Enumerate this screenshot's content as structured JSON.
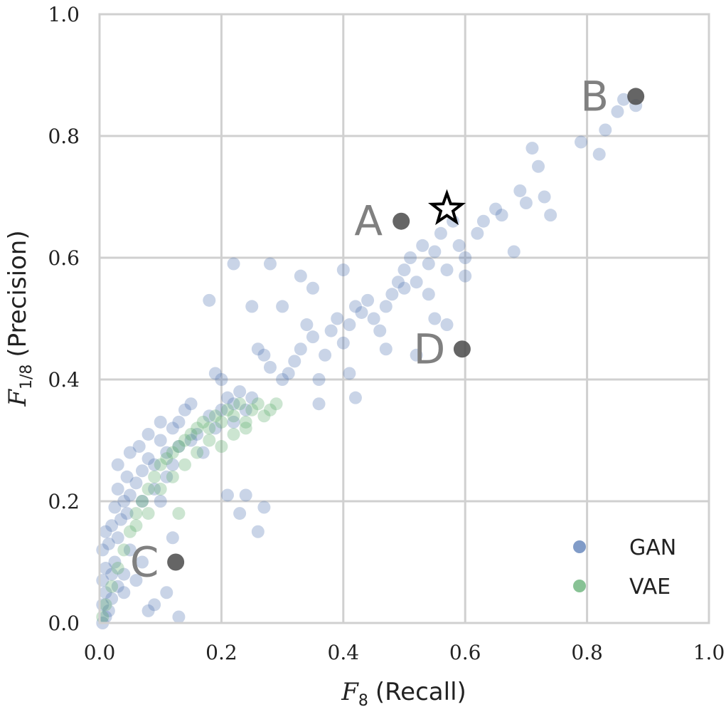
{
  "chart_data": {
    "type": "scatter",
    "title": "",
    "xlabel": {
      "symbol": "F",
      "subscript": "8",
      "text": "(Recall)"
    },
    "ylabel": {
      "symbol": "F",
      "subscript": "1/8",
      "text": "(Precision)"
    },
    "xlim": [
      0.0,
      1.0
    ],
    "ylim": [
      0.0,
      1.0
    ],
    "xticks": [
      "0.0",
      "0.2",
      "0.4",
      "0.6",
      "0.8",
      "1.0"
    ],
    "yticks": [
      "0.0",
      "0.2",
      "0.4",
      "0.6",
      "0.8",
      "1.0"
    ],
    "grid": true,
    "legend_placement": "bottom-right",
    "series": [
      {
        "name": "GAN",
        "color": "#4C72B0",
        "points": [
          [
            0.005,
            0.0
          ],
          [
            0.01,
            0.01
          ],
          [
            0.015,
            0.02
          ],
          [
            0.005,
            0.03
          ],
          [
            0.02,
            0.04
          ],
          [
            0.01,
            0.05
          ],
          [
            0.03,
            0.06
          ],
          [
            0.005,
            0.07
          ],
          [
            0.02,
            0.08
          ],
          [
            0.01,
            0.09
          ],
          [
            0.025,
            0.1
          ],
          [
            0.04,
            0.05
          ],
          [
            0.005,
            0.12
          ],
          [
            0.015,
            0.13
          ],
          [
            0.03,
            0.14
          ],
          [
            0.01,
            0.15
          ],
          [
            0.02,
            0.16
          ],
          [
            0.035,
            0.17
          ],
          [
            0.045,
            0.18
          ],
          [
            0.025,
            0.19
          ],
          [
            0.04,
            0.2
          ],
          [
            0.05,
            0.21
          ],
          [
            0.03,
            0.22
          ],
          [
            0.06,
            0.23
          ],
          [
            0.045,
            0.24
          ],
          [
            0.07,
            0.25
          ],
          [
            0.03,
            0.26
          ],
          [
            0.05,
            0.28
          ],
          [
            0.065,
            0.29
          ],
          [
            0.08,
            0.27
          ],
          [
            0.09,
            0.26
          ],
          [
            0.1,
            0.3
          ],
          [
            0.11,
            0.28
          ],
          [
            0.12,
            0.32
          ],
          [
            0.08,
            0.31
          ],
          [
            0.13,
            0.33
          ],
          [
            0.14,
            0.35
          ],
          [
            0.1,
            0.33
          ],
          [
            0.07,
            0.2
          ],
          [
            0.09,
            0.22
          ],
          [
            0.11,
            0.24
          ],
          [
            0.12,
            0.26
          ],
          [
            0.1,
            0.2
          ],
          [
            0.13,
            0.29
          ],
          [
            0.15,
            0.3
          ],
          [
            0.16,
            0.31
          ],
          [
            0.17,
            0.28
          ],
          [
            0.15,
            0.36
          ],
          [
            0.18,
            0.34
          ],
          [
            0.19,
            0.32
          ],
          [
            0.2,
            0.35
          ],
          [
            0.21,
            0.37
          ],
          [
            0.22,
            0.36
          ],
          [
            0.2,
            0.4
          ],
          [
            0.23,
            0.38
          ],
          [
            0.19,
            0.41
          ],
          [
            0.22,
            0.33
          ],
          [
            0.25,
            0.37
          ],
          [
            0.24,
            0.35
          ],
          [
            0.26,
            0.45
          ],
          [
            0.27,
            0.44
          ],
          [
            0.28,
            0.42
          ],
          [
            0.3,
            0.4
          ],
          [
            0.31,
            0.41
          ],
          [
            0.32,
            0.43
          ],
          [
            0.33,
            0.45
          ],
          [
            0.34,
            0.49
          ],
          [
            0.35,
            0.47
          ],
          [
            0.36,
            0.4
          ],
          [
            0.37,
            0.44
          ],
          [
            0.38,
            0.48
          ],
          [
            0.39,
            0.5
          ],
          [
            0.4,
            0.46
          ],
          [
            0.41,
            0.49
          ],
          [
            0.42,
            0.52
          ],
          [
            0.43,
            0.51
          ],
          [
            0.44,
            0.53
          ],
          [
            0.45,
            0.5
          ],
          [
            0.46,
            0.48
          ],
          [
            0.47,
            0.52
          ],
          [
            0.48,
            0.54
          ],
          [
            0.49,
            0.56
          ],
          [
            0.5,
            0.58
          ],
          [
            0.51,
            0.6
          ],
          [
            0.52,
            0.56
          ],
          [
            0.53,
            0.62
          ],
          [
            0.54,
            0.59
          ],
          [
            0.55,
            0.61
          ],
          [
            0.56,
            0.64
          ],
          [
            0.57,
            0.58
          ],
          [
            0.58,
            0.66
          ],
          [
            0.59,
            0.62
          ],
          [
            0.6,
            0.6
          ],
          [
            0.62,
            0.64
          ],
          [
            0.63,
            0.66
          ],
          [
            0.65,
            0.68
          ],
          [
            0.66,
            0.67
          ],
          [
            0.68,
            0.61
          ],
          [
            0.69,
            0.71
          ],
          [
            0.7,
            0.69
          ],
          [
            0.71,
            0.78
          ],
          [
            0.72,
            0.75
          ],
          [
            0.73,
            0.7
          ],
          [
            0.74,
            0.67
          ],
          [
            0.79,
            0.79
          ],
          [
            0.82,
            0.77
          ],
          [
            0.83,
            0.81
          ],
          [
            0.85,
            0.84
          ],
          [
            0.86,
            0.86
          ],
          [
            0.88,
            0.85
          ],
          [
            0.18,
            0.53
          ],
          [
            0.28,
            0.59
          ],
          [
            0.3,
            0.52
          ],
          [
            0.33,
            0.57
          ],
          [
            0.4,
            0.58
          ],
          [
            0.22,
            0.59
          ],
          [
            0.25,
            0.52
          ],
          [
            0.42,
            0.37
          ],
          [
            0.41,
            0.41
          ],
          [
            0.36,
            0.36
          ],
          [
            0.21,
            0.21
          ],
          [
            0.24,
            0.21
          ],
          [
            0.27,
            0.19
          ],
          [
            0.26,
            0.15
          ],
          [
            0.23,
            0.18
          ],
          [
            0.12,
            0.14
          ],
          [
            0.11,
            0.05
          ],
          [
            0.08,
            0.02
          ],
          [
            0.13,
            0.01
          ],
          [
            0.09,
            0.03
          ],
          [
            0.06,
            0.07
          ],
          [
            0.05,
            0.12
          ],
          [
            0.07,
            0.1
          ],
          [
            0.04,
            0.08
          ],
          [
            0.35,
            0.55
          ],
          [
            0.47,
            0.45
          ],
          [
            0.52,
            0.44
          ],
          [
            0.55,
            0.5
          ],
          [
            0.57,
            0.49
          ],
          [
            0.5,
            0.55
          ],
          [
            0.54,
            0.54
          ],
          [
            0.6,
            0.57
          ]
        ]
      },
      {
        "name": "VAE",
        "color": "#55A868",
        "points": [
          [
            0.005,
            0.01
          ],
          [
            0.01,
            0.03
          ],
          [
            0.02,
            0.06
          ],
          [
            0.03,
            0.09
          ],
          [
            0.04,
            0.12
          ],
          [
            0.05,
            0.15
          ],
          [
            0.06,
            0.18
          ],
          [
            0.07,
            0.2
          ],
          [
            0.08,
            0.22
          ],
          [
            0.09,
            0.24
          ],
          [
            0.1,
            0.26
          ],
          [
            0.11,
            0.27
          ],
          [
            0.12,
            0.28
          ],
          [
            0.13,
            0.29
          ],
          [
            0.14,
            0.3
          ],
          [
            0.15,
            0.31
          ],
          [
            0.16,
            0.32
          ],
          [
            0.17,
            0.33
          ],
          [
            0.18,
            0.32
          ],
          [
            0.19,
            0.34
          ],
          [
            0.2,
            0.33
          ],
          [
            0.21,
            0.35
          ],
          [
            0.22,
            0.34
          ],
          [
            0.23,
            0.36
          ],
          [
            0.24,
            0.33
          ],
          [
            0.25,
            0.35
          ],
          [
            0.26,
            0.36
          ],
          [
            0.27,
            0.34
          ],
          [
            0.28,
            0.35
          ],
          [
            0.29,
            0.36
          ],
          [
            0.2,
            0.29
          ],
          [
            0.18,
            0.3
          ],
          [
            0.16,
            0.28
          ],
          [
            0.22,
            0.31
          ],
          [
            0.24,
            0.32
          ],
          [
            0.14,
            0.26
          ],
          [
            0.12,
            0.24
          ],
          [
            0.1,
            0.22
          ],
          [
            0.13,
            0.18
          ],
          [
            0.08,
            0.18
          ],
          [
            0.06,
            0.16
          ]
        ]
      }
    ],
    "highlights": [
      {
        "label": "A",
        "x": 0.495,
        "y": 0.66
      },
      {
        "label": "B",
        "x": 0.88,
        "y": 0.865
      },
      {
        "label": "C",
        "x": 0.125,
        "y": 0.1
      },
      {
        "label": "D",
        "x": 0.595,
        "y": 0.45
      }
    ],
    "star": {
      "x": 0.57,
      "y": 0.68
    }
  }
}
